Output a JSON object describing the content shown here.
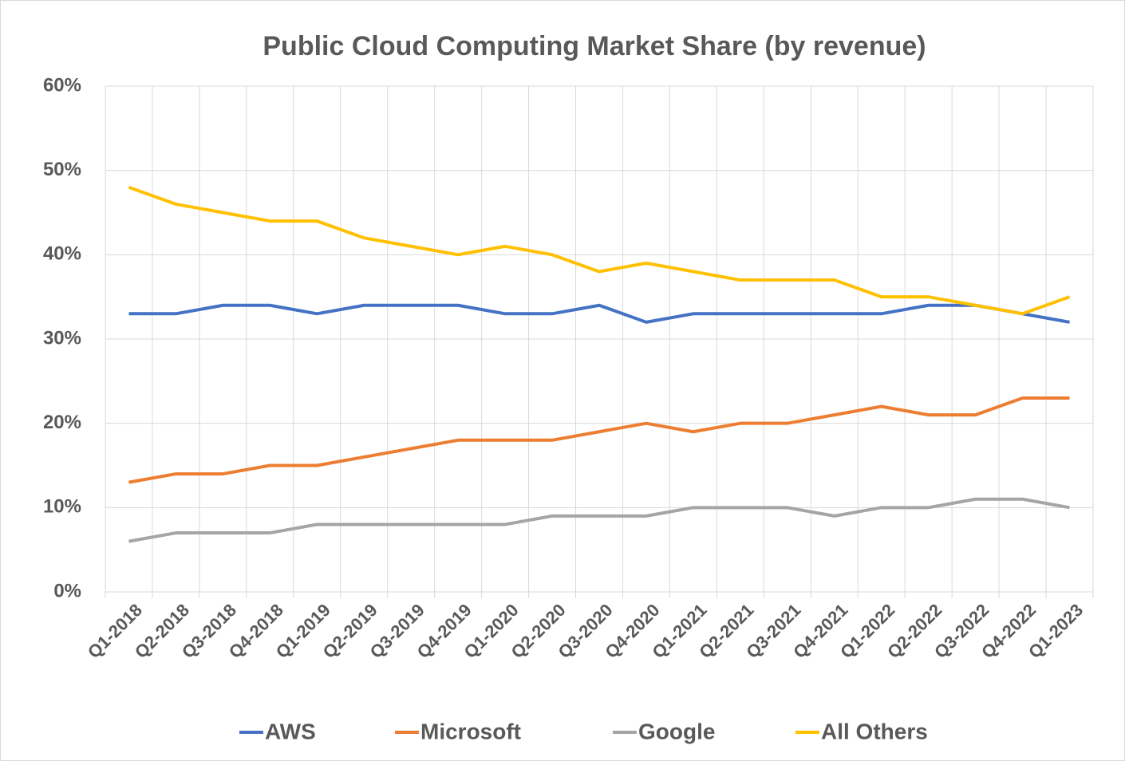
{
  "chart_data": {
    "type": "line",
    "title": "Public Cloud Computing Market Share (by revenue)",
    "categories": [
      "Q1-2018",
      "Q2-2018",
      "Q3-2018",
      "Q4-2018",
      "Q1-2019",
      "Q2-2019",
      "Q3-2019",
      "Q4-2019",
      "Q1-2020",
      "Q2-2020",
      "Q3-2020",
      "Q4-2020",
      "Q1-2021",
      "Q2-2021",
      "Q3-2021",
      "Q4-2021",
      "Q1-2022",
      "Q2-2022",
      "Q3-2022",
      "Q4-2022",
      "Q1-2023"
    ],
    "series": [
      {
        "name": "AWS",
        "color": "#4472c4",
        "values": [
          33,
          33,
          34,
          34,
          33,
          34,
          34,
          34,
          33,
          33,
          34,
          32,
          33,
          33,
          33,
          33,
          33,
          34,
          34,
          33,
          32
        ]
      },
      {
        "name": "Microsoft",
        "color": "#ed7d31",
        "values": [
          13,
          14,
          14,
          15,
          15,
          16,
          17,
          18,
          18,
          18,
          19,
          20,
          19,
          20,
          20,
          21,
          22,
          21,
          21,
          23,
          23
        ]
      },
      {
        "name": "Google",
        "color": "#a5a5a5",
        "values": [
          6,
          7,
          7,
          7,
          8,
          8,
          8,
          8,
          8,
          9,
          9,
          9,
          10,
          10,
          10,
          9,
          10,
          10,
          11,
          11,
          10
        ]
      },
      {
        "name": "All Others",
        "color": "#ffc000",
        "values": [
          48,
          46,
          45,
          44,
          44,
          42,
          41,
          40,
          41,
          40,
          38,
          39,
          38,
          37,
          37,
          37,
          35,
          35,
          34,
          33,
          35
        ]
      }
    ],
    "ylim": [
      0,
      60
    ],
    "yticks": [
      {
        "value": 0,
        "label": "0%"
      },
      {
        "value": 10,
        "label": "10%"
      },
      {
        "value": 20,
        "label": "20%"
      },
      {
        "value": 30,
        "label": "30%"
      },
      {
        "value": 40,
        "label": "40%"
      },
      {
        "value": 50,
        "label": "50%"
      },
      {
        "value": 60,
        "label": "60%"
      }
    ],
    "grid": true
  }
}
